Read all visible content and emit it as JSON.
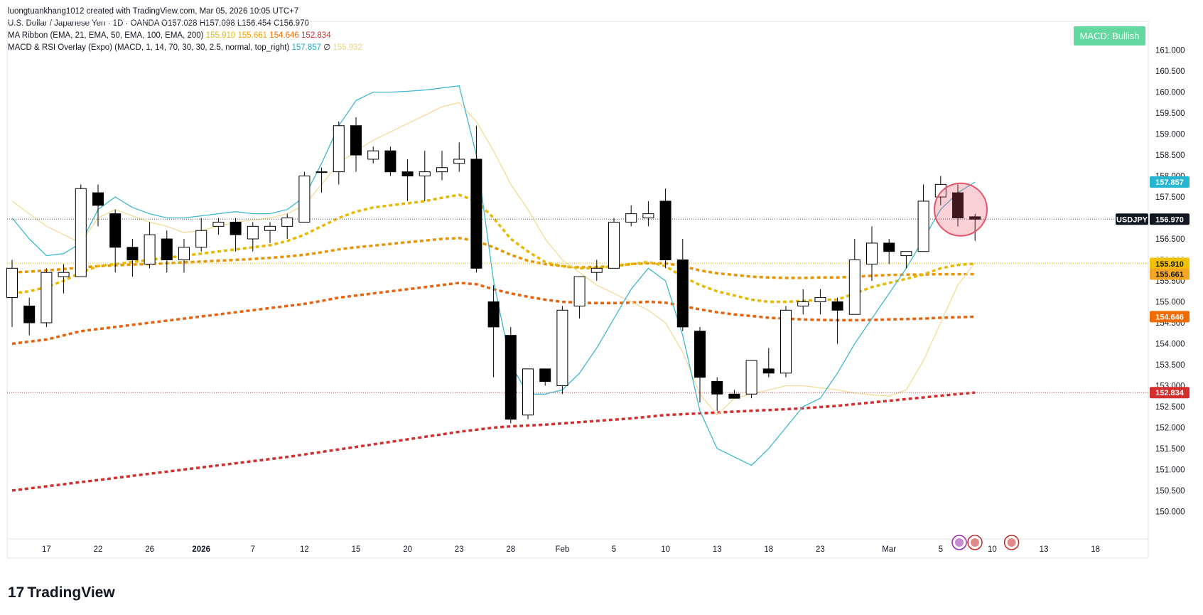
{
  "header": {
    "credit": "luongtuankhang1012 created with TradingView.com, Mar 05, 2026 10:05 UTC+7",
    "symbol_line": "U.S. Dollar / Japanese Yen · 1D · OANDA  O157.028  H157.098  L156.454  C156.970",
    "ribbon_label": "MA Ribbon (EMA, 21, EMA, 50, EMA, 100, EMA, 200)",
    "ribbon_values": [
      "155.910",
      "155.661",
      "154.646",
      "152.834"
    ],
    "overlay_label": "MACD & RSI Overlay (Expo) (MACD, 1, 14, 70, 30, 30, 2.5, normal, top_right)",
    "overlay_values": [
      "157.857",
      "∅",
      "155.932"
    ]
  },
  "badge": {
    "label": "MACD: Bullish",
    "color": "#63d8a0"
  },
  "footer": {
    "logo_mark": "17",
    "logo_text": "TradingView"
  },
  "chart_data": {
    "type": "candlestick",
    "symbol": "USDJPY",
    "y_ticks": [
      150.0,
      150.5,
      151.0,
      151.5,
      152.0,
      152.5,
      153.0,
      153.5,
      154.0,
      154.5,
      155.0,
      155.5,
      156.0,
      156.5,
      157.0,
      157.5,
      158.0,
      158.5,
      159.0,
      159.5,
      160.0,
      160.5,
      161.0
    ],
    "y_tick_labels": [
      "150.000",
      "150.500",
      "151.000",
      "151.500",
      "152.000",
      "152.500",
      "153.000",
      "153.500",
      "154.000",
      "154.500",
      "155.000",
      "155.500",
      "156.000",
      "156.500",
      "157.000",
      "157.500",
      "158.000",
      "158.500",
      "159.000",
      "159.500",
      "160.000",
      "160.500",
      "161.000"
    ],
    "ylim": [
      149.6,
      161.4
    ],
    "x_ticks": [
      {
        "slot": 2,
        "label": "17",
        "bold": false
      },
      {
        "slot": 5,
        "label": "22",
        "bold": false
      },
      {
        "slot": 8,
        "label": "26",
        "bold": false
      },
      {
        "slot": 11,
        "label": "2026",
        "bold": true
      },
      {
        "slot": 14,
        "label": "7",
        "bold": false
      },
      {
        "slot": 17,
        "label": "12",
        "bold": false
      },
      {
        "slot": 20,
        "label": "15",
        "bold": false
      },
      {
        "slot": 23,
        "label": "20",
        "bold": false
      },
      {
        "slot": 26,
        "label": "23",
        "bold": false
      },
      {
        "slot": 29,
        "label": "28",
        "bold": false
      },
      {
        "slot": 32,
        "label": "Feb",
        "bold": false
      },
      {
        "slot": 35,
        "label": "5",
        "bold": false
      },
      {
        "slot": 38,
        "label": "10",
        "bold": false
      },
      {
        "slot": 41,
        "label": "13",
        "bold": false
      },
      {
        "slot": 44,
        "label": "18",
        "bold": false
      },
      {
        "slot": 47,
        "label": "23",
        "bold": false
      },
      {
        "slot": 51,
        "label": "Mar",
        "bold": false
      },
      {
        "slot": 54,
        "label": "5",
        "bold": false
      },
      {
        "slot": 57,
        "label": "10",
        "bold": false
      },
      {
        "slot": 60,
        "label": "13",
        "bold": false
      },
      {
        "slot": 63,
        "label": "18",
        "bold": false
      }
    ],
    "candles": [
      {
        "o": 155.1,
        "h": 156.0,
        "l": 154.4,
        "c": 155.8
      },
      {
        "o": 154.9,
        "h": 155.1,
        "l": 154.2,
        "c": 154.5
      },
      {
        "o": 154.5,
        "h": 155.8,
        "l": 154.4,
        "c": 155.7
      },
      {
        "o": 155.6,
        "h": 155.9,
        "l": 155.2,
        "c": 155.7
      },
      {
        "o": 155.6,
        "h": 157.8,
        "l": 155.6,
        "c": 157.7
      },
      {
        "o": 157.6,
        "h": 157.8,
        "l": 156.8,
        "c": 157.3
      },
      {
        "o": 157.1,
        "h": 157.2,
        "l": 155.7,
        "c": 156.3
      },
      {
        "o": 156.3,
        "h": 156.5,
        "l": 155.6,
        "c": 156.0
      },
      {
        "o": 155.9,
        "h": 156.9,
        "l": 155.8,
        "c": 156.6
      },
      {
        "o": 156.5,
        "h": 156.7,
        "l": 155.7,
        "c": 156.0
      },
      {
        "o": 156.0,
        "h": 156.5,
        "l": 155.7,
        "c": 156.3
      },
      {
        "o": 156.3,
        "h": 157.0,
        "l": 156.2,
        "c": 156.7
      },
      {
        "o": 156.8,
        "h": 157.0,
        "l": 156.6,
        "c": 156.9
      },
      {
        "o": 156.9,
        "h": 157.0,
        "l": 156.2,
        "c": 156.6
      },
      {
        "o": 156.5,
        "h": 156.9,
        "l": 156.2,
        "c": 156.8
      },
      {
        "o": 156.7,
        "h": 156.9,
        "l": 156.4,
        "c": 156.8
      },
      {
        "o": 156.8,
        "h": 157.1,
        "l": 156.5,
        "c": 157.0
      },
      {
        "o": 156.9,
        "h": 158.1,
        "l": 156.9,
        "c": 158.0
      },
      {
        "o": 158.1,
        "h": 158.2,
        "l": 157.6,
        "c": 158.1
      },
      {
        "o": 158.1,
        "h": 159.3,
        "l": 157.8,
        "c": 159.2
      },
      {
        "o": 159.2,
        "h": 159.4,
        "l": 158.1,
        "c": 158.5
      },
      {
        "o": 158.4,
        "h": 158.7,
        "l": 158.3,
        "c": 158.6
      },
      {
        "o": 158.6,
        "h": 158.7,
        "l": 158.0,
        "c": 158.1
      },
      {
        "o": 158.1,
        "h": 158.4,
        "l": 157.4,
        "c": 158.0
      },
      {
        "o": 158.0,
        "h": 158.6,
        "l": 157.4,
        "c": 158.1
      },
      {
        "o": 158.1,
        "h": 158.6,
        "l": 157.9,
        "c": 158.2
      },
      {
        "o": 158.3,
        "h": 158.8,
        "l": 158.1,
        "c": 158.4
      },
      {
        "o": 158.4,
        "h": 159.2,
        "l": 155.7,
        "c": 155.8
      },
      {
        "o": 155.0,
        "h": 155.4,
        "l": 153.2,
        "c": 154.4
      },
      {
        "o": 154.2,
        "h": 154.4,
        "l": 152.1,
        "c": 152.2
      },
      {
        "o": 152.3,
        "h": 153.4,
        "l": 152.2,
        "c": 153.4
      },
      {
        "o": 153.4,
        "h": 153.4,
        "l": 153.0,
        "c": 153.1
      },
      {
        "o": 153.0,
        "h": 154.9,
        "l": 152.8,
        "c": 154.8
      },
      {
        "o": 154.9,
        "h": 155.6,
        "l": 154.6,
        "c": 155.6
      },
      {
        "o": 155.7,
        "h": 156.0,
        "l": 155.5,
        "c": 155.8
      },
      {
        "o": 155.8,
        "h": 157.0,
        "l": 155.8,
        "c": 156.9
      },
      {
        "o": 156.9,
        "h": 157.3,
        "l": 156.8,
        "c": 157.1
      },
      {
        "o": 157.0,
        "h": 157.4,
        "l": 156.8,
        "c": 157.1
      },
      {
        "o": 157.4,
        "h": 157.7,
        "l": 155.8,
        "c": 156.0
      },
      {
        "o": 156.0,
        "h": 156.5,
        "l": 154.3,
        "c": 154.4
      },
      {
        "o": 154.3,
        "h": 154.4,
        "l": 152.6,
        "c": 153.2
      },
      {
        "o": 153.1,
        "h": 153.2,
        "l": 152.4,
        "c": 152.8
      },
      {
        "o": 152.8,
        "h": 152.9,
        "l": 152.7,
        "c": 152.7
      },
      {
        "o": 152.8,
        "h": 153.6,
        "l": 152.7,
        "c": 153.6
      },
      {
        "o": 153.4,
        "h": 153.9,
        "l": 153.2,
        "c": 153.3
      },
      {
        "o": 153.3,
        "h": 154.9,
        "l": 153.2,
        "c": 154.8
      },
      {
        "o": 154.9,
        "h": 155.3,
        "l": 154.7,
        "c": 155.0
      },
      {
        "o": 155.0,
        "h": 155.3,
        "l": 154.7,
        "c": 155.1
      },
      {
        "o": 155.0,
        "h": 155.1,
        "l": 154.0,
        "c": 154.8
      },
      {
        "o": 154.7,
        "h": 156.5,
        "l": 154.7,
        "c": 156.0
      },
      {
        "o": 155.9,
        "h": 156.8,
        "l": 155.5,
        "c": 156.4
      },
      {
        "o": 156.4,
        "h": 156.5,
        "l": 155.9,
        "c": 156.2
      },
      {
        "o": 156.1,
        "h": 156.2,
        "l": 155.8,
        "c": 156.2
      },
      {
        "o": 156.2,
        "h": 157.8,
        "l": 156.2,
        "c": 157.4
      },
      {
        "o": 157.5,
        "h": 158.0,
        "l": 157.3,
        "c": 157.8
      },
      {
        "o": 157.6,
        "h": 157.8,
        "l": 156.8,
        "c": 157.0
      },
      {
        "o": 157.028,
        "h": 157.098,
        "l": 156.454,
        "c": 156.97
      }
    ],
    "ema21": [
      155.2,
      155.25,
      155.35,
      155.5,
      155.7,
      155.85,
      155.9,
      155.95,
      156.0,
      156.05,
      156.1,
      156.15,
      156.2,
      156.25,
      156.3,
      156.35,
      156.45,
      156.6,
      156.8,
      157.0,
      157.15,
      157.25,
      157.3,
      157.35,
      157.4,
      157.48,
      157.55,
      157.4,
      157.0,
      156.5,
      156.2,
      155.95,
      155.85,
      155.8,
      155.8,
      155.85,
      155.9,
      155.95,
      155.85,
      155.6,
      155.4,
      155.25,
      155.15,
      155.05,
      155.0,
      155.0,
      155.02,
      155.05,
      155.05,
      155.2,
      155.35,
      155.45,
      155.55,
      155.65,
      155.8,
      155.88,
      155.91
    ],
    "ema50": [
      155.7,
      155.72,
      155.75,
      155.78,
      155.82,
      155.85,
      155.87,
      155.89,
      155.9,
      155.92,
      155.94,
      155.96,
      155.98,
      156.0,
      156.02,
      156.05,
      156.08,
      156.12,
      156.18,
      156.25,
      156.3,
      156.34,
      156.38,
      156.42,
      156.46,
      156.5,
      156.52,
      156.45,
      156.3,
      156.12,
      155.98,
      155.9,
      155.85,
      155.82,
      155.83,
      155.85,
      155.9,
      155.92,
      155.92,
      155.85,
      155.75,
      155.68,
      155.64,
      155.6,
      155.58,
      155.57,
      155.57,
      155.58,
      155.58,
      155.6,
      155.62,
      155.64,
      155.65,
      155.65,
      155.66,
      155.66,
      155.661
    ],
    "ema100": [
      154.0,
      154.05,
      154.1,
      154.2,
      154.3,
      154.35,
      154.4,
      154.45,
      154.5,
      154.55,
      154.6,
      154.65,
      154.7,
      154.75,
      154.8,
      154.85,
      154.9,
      154.95,
      155.02,
      155.1,
      155.15,
      155.2,
      155.25,
      155.3,
      155.35,
      155.4,
      155.45,
      155.42,
      155.3,
      155.2,
      155.12,
      155.05,
      155.0,
      154.98,
      154.97,
      154.97,
      154.98,
      155.0,
      154.98,
      154.9,
      154.82,
      154.75,
      154.7,
      154.66,
      154.62,
      154.6,
      154.58,
      154.57,
      154.56,
      154.56,
      154.57,
      154.58,
      154.59,
      154.6,
      154.62,
      154.63,
      154.646
    ],
    "ema200": [
      150.5,
      150.55,
      150.6,
      150.65,
      150.7,
      150.75,
      150.8,
      150.85,
      150.9,
      150.95,
      151.0,
      151.05,
      151.1,
      151.15,
      151.2,
      151.25,
      151.3,
      151.36,
      151.42,
      151.48,
      151.54,
      151.6,
      151.66,
      151.72,
      151.78,
      151.84,
      151.9,
      151.95,
      152.0,
      152.03,
      152.05,
      152.07,
      152.1,
      152.13,
      152.16,
      152.19,
      152.22,
      152.26,
      152.3,
      152.32,
      152.34,
      152.36,
      152.38,
      152.4,
      152.42,
      152.44,
      152.46,
      152.49,
      152.52,
      152.56,
      152.6,
      152.64,
      152.68,
      152.72,
      152.76,
      152.8,
      152.834
    ],
    "macd_line": [
      157.0,
      156.5,
      156.1,
      156.15,
      156.4,
      157.2,
      157.5,
      157.25,
      157.1,
      157.0,
      157.0,
      157.05,
      157.1,
      157.15,
      157.1,
      157.1,
      157.2,
      157.5,
      158.3,
      159.2,
      159.8,
      160.0,
      160.0,
      160.02,
      160.05,
      160.1,
      160.15,
      158.5,
      155.5,
      153.5,
      152.8,
      152.8,
      152.9,
      153.3,
      153.9,
      154.6,
      155.3,
      155.8,
      155.5,
      154.2,
      152.4,
      151.5,
      151.3,
      151.1,
      151.5,
      152.0,
      152.5,
      152.7,
      153.3,
      154.0,
      154.6,
      155.2,
      155.8,
      156.5,
      157.2,
      157.6,
      157.857
    ],
    "rsi_line": [
      157.4,
      157.1,
      156.8,
      156.6,
      156.4,
      157.0,
      157.2,
      157.05,
      156.9,
      156.8,
      156.65,
      156.7,
      156.8,
      156.9,
      156.95,
      157.0,
      157.1,
      157.3,
      157.8,
      158.3,
      158.6,
      158.85,
      159.05,
      159.25,
      159.45,
      159.65,
      159.75,
      159.3,
      158.6,
      157.8,
      157.2,
      156.5,
      156.0,
      155.7,
      155.4,
      155.2,
      155.0,
      154.8,
      154.5,
      153.8,
      152.8,
      152.3,
      152.7,
      152.8,
      152.9,
      153.0,
      153.0,
      152.95,
      152.9,
      152.82,
      152.78,
      152.75,
      152.9,
      153.6,
      154.5,
      155.4,
      155.932
    ],
    "price_tags": [
      {
        "value": 157.857,
        "label": "157.857",
        "color": "#26b6cf"
      },
      {
        "value": 156.97,
        "label": "156.970",
        "symbol": "USDJPY",
        "color": "#131722"
      },
      {
        "value": 155.932,
        "label": "155.932",
        "color": "#f5e6a0"
      },
      {
        "value": 155.91,
        "label": "155.910",
        "color": "#f2c200"
      },
      {
        "value": 155.661,
        "label": "155.661",
        "color": "#f5a623"
      },
      {
        "value": 154.646,
        "label": "154.646",
        "color": "#ef6c00"
      },
      {
        "value": 152.834,
        "label": "152.834",
        "color": "#d32f2f"
      }
    ],
    "colors": {
      "ema21": "#e6b800",
      "ema50": "#e69500",
      "ema100": "#e8620c",
      "ema200": "#d32f2f",
      "macd_line": "#3fb8cf",
      "rsi_line": "#f3dc97",
      "candle_up_fill": "#ffffff",
      "candle_down_fill": "#000000",
      "highlight_circle": "#e5566b"
    },
    "highlight_slot": 55,
    "grid": false,
    "legend": "top-left"
  }
}
